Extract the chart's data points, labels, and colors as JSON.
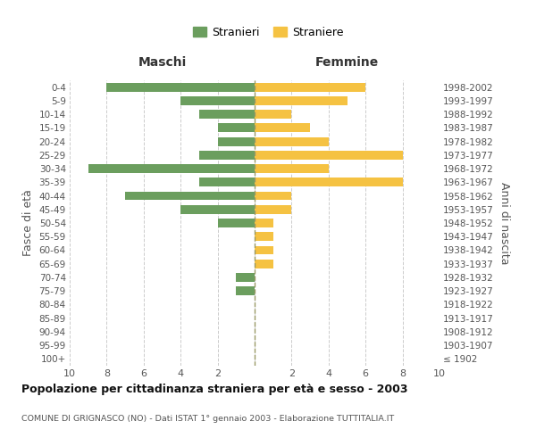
{
  "age_groups": [
    "100+",
    "95-99",
    "90-94",
    "85-89",
    "80-84",
    "75-79",
    "70-74",
    "65-69",
    "60-64",
    "55-59",
    "50-54",
    "45-49",
    "40-44",
    "35-39",
    "30-34",
    "25-29",
    "20-24",
    "15-19",
    "10-14",
    "5-9",
    "0-4"
  ],
  "birth_years": [
    "≤ 1902",
    "1903-1907",
    "1908-1912",
    "1913-1917",
    "1918-1922",
    "1923-1927",
    "1928-1932",
    "1933-1937",
    "1938-1942",
    "1943-1947",
    "1948-1952",
    "1953-1957",
    "1958-1962",
    "1963-1967",
    "1968-1972",
    "1973-1977",
    "1978-1982",
    "1983-1987",
    "1988-1992",
    "1993-1997",
    "1998-2002"
  ],
  "males": [
    0,
    0,
    0,
    0,
    0,
    1,
    1,
    0,
    0,
    0,
    2,
    4,
    7,
    3,
    9,
    3,
    2,
    2,
    3,
    4,
    8
  ],
  "females": [
    0,
    0,
    0,
    0,
    0,
    0,
    0,
    1,
    1,
    1,
    1,
    2,
    2,
    8,
    4,
    8,
    4,
    3,
    2,
    5,
    6
  ],
  "male_color": "#6b9e5e",
  "female_color": "#f5c242",
  "background_color": "#ffffff",
  "grid_color": "#cccccc",
  "title": "Popolazione per cittadinanza straniera per età e sesso - 2003",
  "subtitle": "COMUNE DI GRIGNASCO (NO) - Dati ISTAT 1° gennaio 2003 - Elaborazione TUTTITALIA.IT",
  "xlabel_left": "Maschi",
  "xlabel_right": "Femmine",
  "ylabel_left": "Fasce di età",
  "ylabel_right": "Anni di nascita",
  "legend_males": "Stranieri",
  "legend_females": "Straniere",
  "xlim": 10
}
